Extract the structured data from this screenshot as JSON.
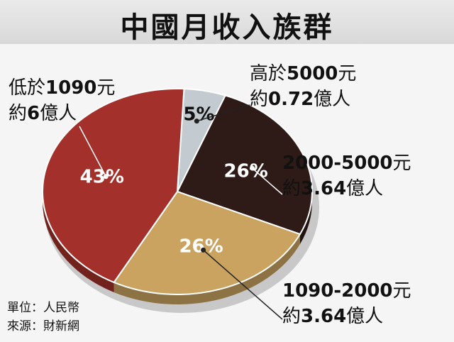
{
  "title": "中國月收入族群",
  "footnotes": {
    "unit": "單位：人民幣",
    "source": "來源：財新網"
  },
  "colors": {
    "low": "#a3302a",
    "mid": "#c9a35f",
    "upper_mid": "#2e1b17",
    "high": "#c3cad0"
  },
  "chart_data": {
    "type": "pie",
    "slices": [
      {
        "key": "high",
        "value": 5,
        "pct_label": "5%",
        "line1_pre": "高於",
        "line1_num": "5000",
        "line1_post": "元",
        "line2_pre": "約",
        "line2_num": "0.72",
        "line2_post": "億人",
        "color": "#c3cad0",
        "pct_color": "#111111"
      },
      {
        "key": "upper_mid",
        "value": 26,
        "pct_label": "26%",
        "line1_pre": "",
        "line1_num": "2000-5000",
        "line1_post": "元",
        "line2_pre": "約",
        "line2_num": "3.64",
        "line2_post": "億人",
        "color": "#2e1b17",
        "pct_color": "#ffffff"
      },
      {
        "key": "mid",
        "value": 26,
        "pct_label": "26%",
        "line1_pre": "",
        "line1_num": "1090-2000",
        "line1_post": "元",
        "line2_pre": "約",
        "line2_num": "3.64",
        "line2_post": "億人",
        "color": "#c9a35f",
        "pct_color": "#ffffff"
      },
      {
        "key": "low",
        "value": 43,
        "pct_label": "43%",
        "line1_pre": "低於",
        "line1_num": "1090",
        "line1_post": "元",
        "line2_pre": "約",
        "line2_num": "6",
        "line2_post": "億人",
        "color": "#a3302a",
        "pct_color": "#ffffff"
      }
    ]
  }
}
